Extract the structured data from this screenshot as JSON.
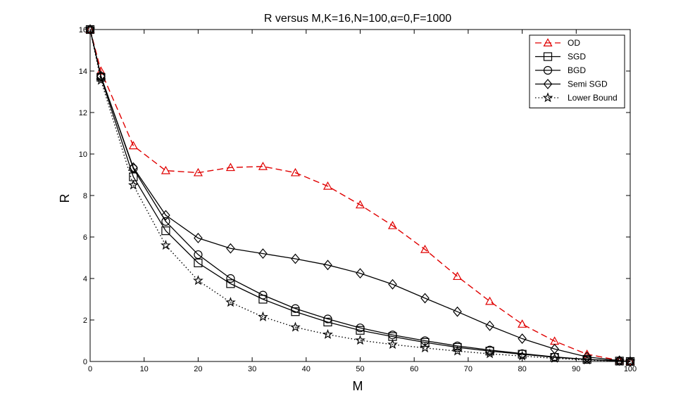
{
  "chart_data": {
    "type": "line",
    "title": "R versus M,K=16,N=100,α=0,F=1000",
    "xlabel": "M",
    "ylabel": "R",
    "xlim": [
      0,
      100
    ],
    "ylim": [
      0,
      16
    ],
    "xticks": [
      0,
      10,
      20,
      30,
      40,
      50,
      60,
      70,
      80,
      90,
      100
    ],
    "yticks": [
      0,
      2,
      4,
      6,
      8,
      10,
      12,
      14,
      16
    ],
    "x": [
      0,
      2,
      8,
      14,
      20,
      26,
      32,
      38,
      44,
      50,
      56,
      62,
      68,
      74,
      80,
      86,
      92,
      98,
      100
    ],
    "grid": false,
    "legend_position": "top-right",
    "series": [
      {
        "name": "OD",
        "color": "#e00000",
        "dash": "dashed",
        "marker": "triangle",
        "values": [
          16,
          14.0,
          10.4,
          9.2,
          9.1,
          9.35,
          9.4,
          9.1,
          8.45,
          7.55,
          6.55,
          5.4,
          4.1,
          2.9,
          1.8,
          0.98,
          0.35,
          0.05,
          0.0
        ]
      },
      {
        "name": "SGD",
        "color": "#000000",
        "dash": "solid",
        "marker": "square",
        "values": [
          16,
          13.7,
          8.9,
          6.3,
          4.75,
          3.75,
          3.0,
          2.4,
          1.9,
          1.5,
          1.2,
          0.92,
          0.68,
          0.5,
          0.35,
          0.2,
          0.1,
          0.02,
          0.0
        ]
      },
      {
        "name": "BGD",
        "color": "#000000",
        "dash": "solid",
        "marker": "circle",
        "values": [
          16,
          13.75,
          9.3,
          6.75,
          5.15,
          4.0,
          3.2,
          2.55,
          2.05,
          1.62,
          1.28,
          1.0,
          0.75,
          0.55,
          0.38,
          0.22,
          0.1,
          0.02,
          0.0
        ]
      },
      {
        "name": "Semi SGD",
        "color": "#000000",
        "dash": "solid",
        "marker": "diamond",
        "values": [
          16,
          13.75,
          9.35,
          7.05,
          5.95,
          5.45,
          5.2,
          4.95,
          4.65,
          4.25,
          3.72,
          3.05,
          2.4,
          1.72,
          1.1,
          0.6,
          0.22,
          0.04,
          0.0
        ]
      },
      {
        "name": "Lower Bound",
        "color": "#000000",
        "dash": "dotted",
        "marker": "star",
        "values": [
          16,
          13.55,
          8.5,
          5.6,
          3.9,
          2.85,
          2.15,
          1.65,
          1.3,
          1.02,
          0.82,
          0.65,
          0.5,
          0.37,
          0.26,
          0.15,
          0.07,
          0.01,
          0.0
        ]
      }
    ]
  }
}
